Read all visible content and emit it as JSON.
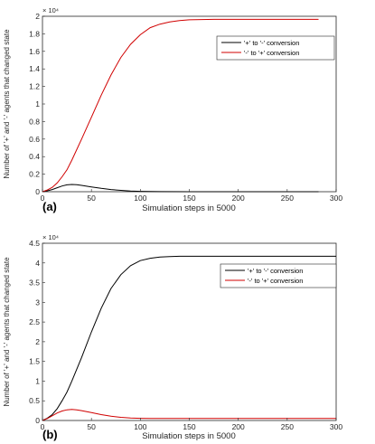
{
  "chart_data": [
    {
      "type": "line",
      "panel_label": "(a)",
      "xlabel": "Simulation steps in 5000",
      "ylabel": "Number of '+' and '-' agents that changed state",
      "y_multiplier": "× 10⁴",
      "xlim": [
        0,
        300
      ],
      "ylim": [
        0,
        2
      ],
      "xticks": [
        "0",
        "50",
        "100",
        "150",
        "200",
        "250",
        "300"
      ],
      "yticks": [
        "0",
        "0.2",
        "0.4",
        "0.6",
        "0.8",
        "1",
        "1.2",
        "1.4",
        "1.6",
        "1.8",
        "2"
      ],
      "legend_position": "top-right",
      "grid": false,
      "series": [
        {
          "name": "'+' to '-' conversion",
          "color": "#000000",
          "x": [
            0,
            5,
            10,
            15,
            20,
            25,
            30,
            35,
            40,
            50,
            60,
            70,
            80,
            90,
            100,
            110,
            120,
            150,
            200,
            250,
            282
          ],
          "y": [
            0,
            0.01,
            0.025,
            0.045,
            0.065,
            0.078,
            0.082,
            0.08,
            0.072,
            0.055,
            0.038,
            0.025,
            0.015,
            0.008,
            0.004,
            0.002,
            0.001,
            0,
            0,
            0,
            0
          ]
        },
        {
          "name": "'-' to '+' conversion",
          "color": "#d00000",
          "x": [
            0,
            5,
            10,
            15,
            20,
            25,
            30,
            40,
            50,
            60,
            70,
            80,
            90,
            100,
            110,
            120,
            130,
            140,
            150,
            175,
            200,
            250,
            282
          ],
          "y": [
            0,
            0.02,
            0.05,
            0.1,
            0.17,
            0.25,
            0.36,
            0.6,
            0.85,
            1.1,
            1.33,
            1.53,
            1.68,
            1.79,
            1.87,
            1.91,
            1.935,
            1.95,
            1.96,
            1.965,
            1.965,
            1.965,
            1.965
          ]
        }
      ]
    },
    {
      "type": "line",
      "panel_label": "(b)",
      "xlabel": "Simulation steps in 5000",
      "ylabel": "Number of '+' and '-' agents that changed state",
      "y_multiplier": "× 10⁴",
      "xlim": [
        0,
        300
      ],
      "ylim": [
        0,
        4.5
      ],
      "xticks": [
        "0",
        "50",
        "100",
        "150",
        "200",
        "250",
        "300"
      ],
      "yticks": [
        "0",
        "0.5",
        "1",
        "1.5",
        "2",
        "2.5",
        "3",
        "3.5",
        "4",
        "4.5"
      ],
      "legend_position": "top-right",
      "grid": false,
      "series": [
        {
          "name": "'+' to '-' conversion",
          "color": "#000000",
          "x": [
            0,
            5,
            10,
            15,
            20,
            25,
            30,
            40,
            50,
            60,
            70,
            80,
            90,
            100,
            110,
            120,
            130,
            140,
            150,
            175,
            200,
            250,
            300
          ],
          "y": [
            0,
            0.06,
            0.15,
            0.3,
            0.5,
            0.72,
            1.0,
            1.6,
            2.25,
            2.85,
            3.35,
            3.7,
            3.93,
            4.06,
            4.12,
            4.15,
            4.16,
            4.17,
            4.17,
            4.17,
            4.17,
            4.17,
            4.17
          ]
        },
        {
          "name": "'-' to '+' conversion",
          "color": "#d00000",
          "x": [
            0,
            5,
            10,
            15,
            20,
            25,
            30,
            35,
            40,
            50,
            60,
            70,
            80,
            90,
            100,
            110,
            120,
            150,
            200,
            250,
            300
          ],
          "y": [
            0,
            0.05,
            0.12,
            0.19,
            0.24,
            0.27,
            0.28,
            0.27,
            0.25,
            0.2,
            0.15,
            0.11,
            0.08,
            0.065,
            0.055,
            0.05,
            0.05,
            0.05,
            0.05,
            0.05,
            0.05
          ]
        }
      ]
    }
  ]
}
